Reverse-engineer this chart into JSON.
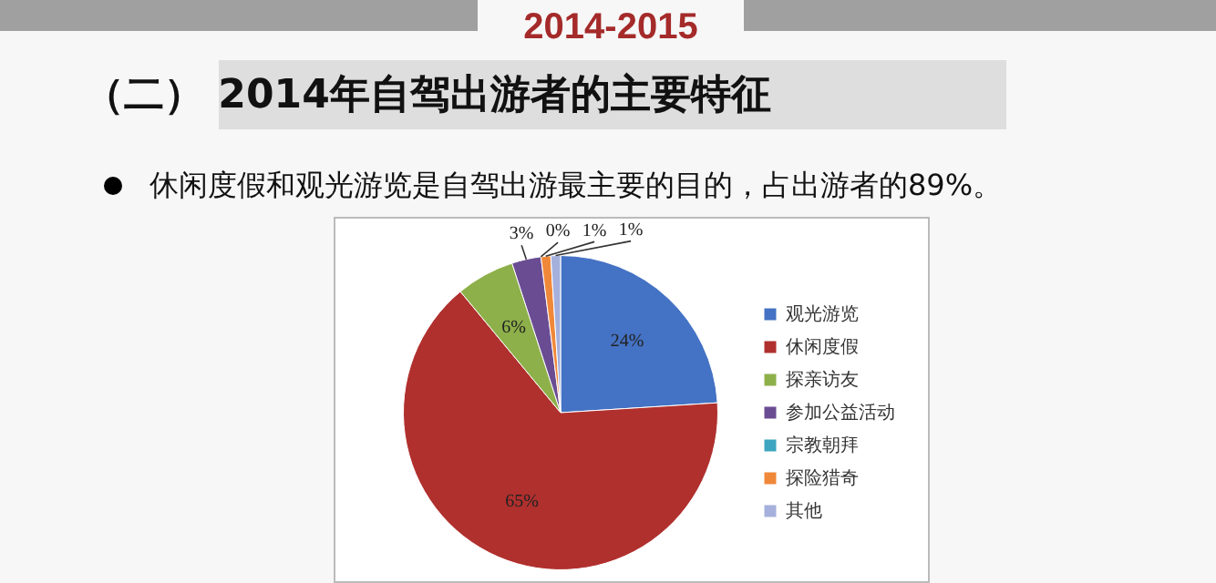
{
  "chart_data": {
    "type": "pie",
    "title": "2014-2015",
    "subtitle": "（二） 2014年自驾出游者的主要特征",
    "annotations": [
      "休闲度假和观光游览是自驾出游最主要的目的，占出游者的89%。"
    ],
    "categories": [
      "观光游览",
      "休闲度假",
      "探亲访友",
      "参加公益活动",
      "宗教朝拜",
      "探险猎奇",
      "其他"
    ],
    "values": [
      24,
      65,
      6,
      3,
      0,
      1,
      1
    ],
    "colors": [
      "#4472c4",
      "#b0302e",
      "#8eb04a",
      "#6a4c93",
      "#3da5bf",
      "#f0883a",
      "#a6b0dc"
    ],
    "value_labels": [
      "24%",
      "65%",
      "6%",
      "3%",
      "0%",
      "1%",
      "1%"
    ],
    "legend": "right"
  }
}
